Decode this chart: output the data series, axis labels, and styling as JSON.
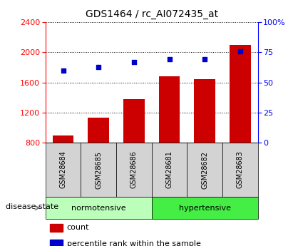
{
  "title": "GDS1464 / rc_AI072435_at",
  "categories": [
    "GSM28684",
    "GSM28685",
    "GSM28686",
    "GSM28681",
    "GSM28682",
    "GSM28683"
  ],
  "bar_values": [
    900,
    1130,
    1380,
    1680,
    1640,
    2100
  ],
  "percentile_values": [
    60,
    63,
    67,
    69,
    69,
    76
  ],
  "bar_color": "#cc0000",
  "marker_color": "#0000cc",
  "ylim_left": [
    800,
    2400
  ],
  "ylim_right": [
    0,
    100
  ],
  "yticks_left": [
    800,
    1200,
    1600,
    2000,
    2400
  ],
  "yticks_right": [
    0,
    25,
    50,
    75,
    100
  ],
  "ytick_labels_right": [
    "0",
    "25",
    "50",
    "75",
    "100%"
  ],
  "group_labels": [
    "normotensive",
    "hypertensive"
  ],
  "group_colors_norm": "#bbffbb",
  "group_colors_hyper": "#44ee44",
  "group_ranges": [
    [
      0,
      3
    ],
    [
      3,
      6
    ]
  ],
  "disease_state_label": "disease state",
  "legend_count_label": "count",
  "legend_percentile_label": "percentile rank within the sample",
  "bar_width": 0.6,
  "title_fontsize": 10,
  "tick_fontsize": 8,
  "group_fontsize": 8,
  "legend_fontsize": 8,
  "sample_label_fontsize": 7,
  "gray_box_color": "#d3d3d3"
}
